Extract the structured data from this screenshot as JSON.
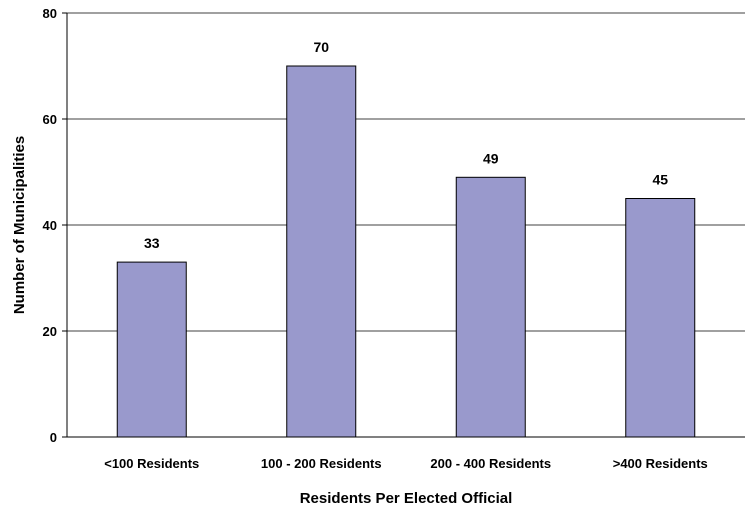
{
  "chart_data": {
    "type": "bar",
    "categories": [
      "<100 Residents",
      "100 - 200 Residents",
      "200 - 400 Residents",
      ">400 Residents"
    ],
    "values": [
      33,
      70,
      49,
      45
    ],
    "data_labels": [
      "33",
      "70",
      "49",
      "45"
    ],
    "title": "",
    "xlabel": "Residents Per Elected Official",
    "ylabel": "Number of Municipalities",
    "ylim": [
      0,
      80
    ],
    "yticks": [
      0,
      20,
      40,
      60,
      80
    ],
    "ytick_labels": [
      "0",
      "20",
      "40",
      "60",
      "80"
    ],
    "grid": true,
    "legend": "none",
    "bar_color": "#9999cc",
    "bar_edge_color": "#000000"
  }
}
